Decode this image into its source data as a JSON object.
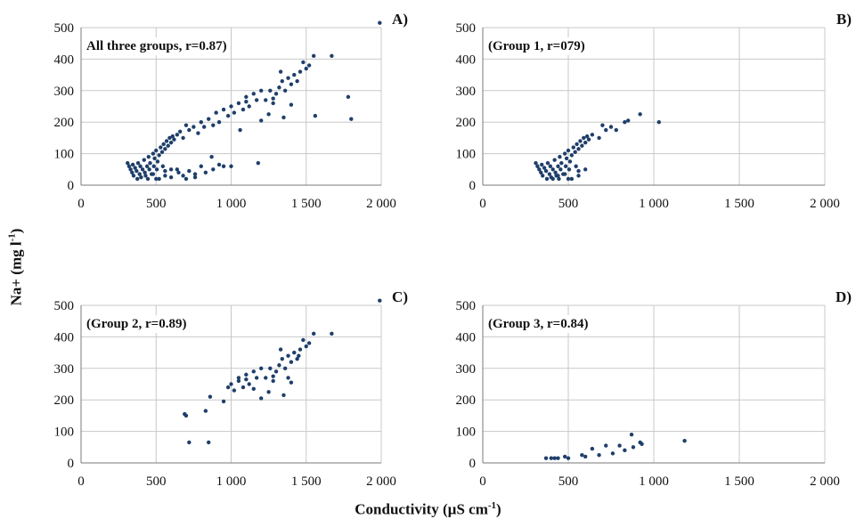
{
  "figure": {
    "ylabel_main": "Na+ (mg l",
    "ylabel_sup": "-1",
    "ylabel_end": ")",
    "xlabel_main": "Conductivity  (µS cm",
    "xlabel_sup": "-1",
    "xlabel_end": ")"
  },
  "colors": {
    "points": "#1f3f6b",
    "grid": "#c8c8c8",
    "axis": "#7a7a7a",
    "text": "#111111"
  },
  "chart_data": [
    {
      "type": "scatter",
      "panel": "A)",
      "annotation": "All three groups,  r=0.87)",
      "xlim": [
        0,
        2000
      ],
      "ylim": [
        0,
        500
      ],
      "xticks": [
        0,
        500,
        1000,
        1500,
        2000
      ],
      "xtick_labels": [
        "0",
        "500",
        "1 000",
        "1 500",
        "2 000"
      ],
      "yticks": [
        0,
        100,
        200,
        300,
        400,
        500
      ],
      "ytick_labels": [
        "0",
        "100",
        "200",
        "300",
        "400",
        "500"
      ],
      "grid": true,
      "points": [
        [
          310,
          70
        ],
        [
          320,
          60
        ],
        [
          330,
          50
        ],
        [
          340,
          40
        ],
        [
          345,
          65
        ],
        [
          350,
          30
        ],
        [
          360,
          55
        ],
        [
          370,
          45
        ],
        [
          375,
          20
        ],
        [
          380,
          70
        ],
        [
          390,
          35
        ],
        [
          395,
          60
        ],
        [
          400,
          25
        ],
        [
          410,
          50
        ],
        [
          420,
          80
        ],
        [
          425,
          40
        ],
        [
          430,
          30
        ],
        [
          440,
          60
        ],
        [
          445,
          20
        ],
        [
          450,
          90
        ],
        [
          455,
          50
        ],
        [
          460,
          70
        ],
        [
          470,
          35
        ],
        [
          480,
          100
        ],
        [
          485,
          60
        ],
        [
          490,
          85
        ],
        [
          500,
          110
        ],
        [
          505,
          50
        ],
        [
          510,
          75
        ],
        [
          520,
          95
        ],
        [
          530,
          120
        ],
        [
          540,
          105
        ],
        [
          545,
          60
        ],
        [
          550,
          130
        ],
        [
          560,
          115
        ],
        [
          570,
          140
        ],
        [
          580,
          125
        ],
        [
          590,
          150
        ],
        [
          600,
          135
        ],
        [
          610,
          155
        ],
        [
          620,
          145
        ],
        [
          640,
          160
        ],
        [
          660,
          170
        ],
        [
          680,
          150
        ],
        [
          700,
          190
        ],
        [
          720,
          175
        ],
        [
          750,
          185
        ],
        [
          780,
          165
        ],
        [
          800,
          200
        ],
        [
          820,
          185
        ],
        [
          850,
          210
        ],
        [
          880,
          190
        ],
        [
          900,
          230
        ],
        [
          920,
          200
        ],
        [
          950,
          240
        ],
        [
          980,
          220
        ],
        [
          1000,
          250
        ],
        [
          1020,
          230
        ],
        [
          1050,
          260
        ],
        [
          1080,
          240
        ],
        [
          1100,
          280
        ],
        [
          1120,
          250
        ],
        [
          1150,
          290
        ],
        [
          1170,
          270
        ],
        [
          1200,
          300
        ],
        [
          1230,
          270
        ],
        [
          1260,
          300
        ],
        [
          1280,
          260
        ],
        [
          1300,
          290
        ],
        [
          1320,
          310
        ],
        [
          1340,
          330
        ],
        [
          1360,
          300
        ],
        [
          1380,
          340
        ],
        [
          1400,
          320
        ],
        [
          1420,
          350
        ],
        [
          1440,
          330
        ],
        [
          1460,
          360
        ],
        [
          1480,
          390
        ],
        [
          1500,
          370
        ],
        [
          1520,
          380
        ],
        [
          1550,
          410
        ],
        [
          1670,
          410
        ],
        [
          1990,
          515
        ],
        [
          1560,
          220
        ],
        [
          1780,
          280
        ],
        [
          1800,
          210
        ],
        [
          1350,
          215
        ],
        [
          1100,
          265
        ],
        [
          1200,
          205
        ],
        [
          1250,
          225
        ],
        [
          1400,
          255
        ],
        [
          1060,
          175
        ],
        [
          1280,
          275
        ],
        [
          1330,
          360
        ],
        [
          520,
          20
        ],
        [
          560,
          30
        ],
        [
          600,
          25
        ],
        [
          640,
          50
        ],
        [
          680,
          30
        ],
        [
          720,
          45
        ],
        [
          760,
          35
        ],
        [
          800,
          60
        ],
        [
          830,
          40
        ],
        [
          870,
          90
        ],
        [
          880,
          50
        ],
        [
          920,
          65
        ],
        [
          950,
          60
        ],
        [
          1000,
          60
        ],
        [
          1180,
          70
        ],
        [
          760,
          25
        ],
        [
          650,
          40
        ],
        [
          480,
          35
        ],
        [
          500,
          20
        ],
        [
          700,
          20
        ],
        [
          600,
          50
        ],
        [
          560,
          45
        ]
      ]
    },
    {
      "type": "scatter",
      "panel": "B)",
      "annotation": "(Group 1, r=079)",
      "xlim": [
        0,
        2000
      ],
      "ylim": [
        0,
        500
      ],
      "xticks": [
        0,
        500,
        1000,
        1500,
        2000
      ],
      "xtick_labels": [
        "0",
        "500",
        "1 000",
        "1 500",
        "2 000"
      ],
      "yticks": [
        0,
        100,
        200,
        300,
        400,
        500
      ],
      "ytick_labels": [
        "0",
        "100",
        "200",
        "300",
        "400",
        "500"
      ],
      "grid": true,
      "points": [
        [
          310,
          70
        ],
        [
          320,
          60
        ],
        [
          330,
          50
        ],
        [
          340,
          40
        ],
        [
          345,
          65
        ],
        [
          350,
          30
        ],
        [
          360,
          55
        ],
        [
          370,
          45
        ],
        [
          375,
          20
        ],
        [
          380,
          70
        ],
        [
          390,
          35
        ],
        [
          395,
          60
        ],
        [
          400,
          25
        ],
        [
          410,
          50
        ],
        [
          420,
          80
        ],
        [
          425,
          40
        ],
        [
          430,
          30
        ],
        [
          440,
          60
        ],
        [
          445,
          20
        ],
        [
          450,
          90
        ],
        [
          455,
          50
        ],
        [
          460,
          70
        ],
        [
          470,
          35
        ],
        [
          480,
          100
        ],
        [
          485,
          60
        ],
        [
          490,
          85
        ],
        [
          500,
          110
        ],
        [
          505,
          50
        ],
        [
          510,
          75
        ],
        [
          520,
          95
        ],
        [
          530,
          120
        ],
        [
          540,
          105
        ],
        [
          545,
          60
        ],
        [
          550,
          130
        ],
        [
          560,
          115
        ],
        [
          570,
          140
        ],
        [
          580,
          125
        ],
        [
          590,
          150
        ],
        [
          600,
          135
        ],
        [
          610,
          155
        ],
        [
          620,
          145
        ],
        [
          640,
          160
        ],
        [
          680,
          150
        ],
        [
          700,
          190
        ],
        [
          720,
          175
        ],
        [
          750,
          185
        ],
        [
          780,
          175
        ],
        [
          830,
          200
        ],
        [
          850,
          205
        ],
        [
          920,
          225
        ],
        [
          1030,
          200
        ],
        [
          560,
          30
        ],
        [
          520,
          20
        ],
        [
          480,
          35
        ],
        [
          600,
          50
        ],
        [
          560,
          45
        ],
        [
          500,
          20
        ],
        [
          440,
          30
        ],
        [
          410,
          20
        ]
      ]
    },
    {
      "type": "scatter",
      "panel": "C)",
      "annotation": "(Group 2, r=0.89)",
      "xlim": [
        0,
        2000
      ],
      "ylim": [
        0,
        500
      ],
      "xticks": [
        0,
        500,
        1000,
        1500,
        2000
      ],
      "xtick_labels": [
        "0",
        "500",
        "1 000",
        "1 500",
        "2 000"
      ],
      "yticks": [
        0,
        100,
        200,
        300,
        400,
        500
      ],
      "ytick_labels": [
        "0",
        "100",
        "200",
        "300",
        "400",
        "500"
      ],
      "grid": true,
      "points": [
        [
          690,
          155
        ],
        [
          700,
          150
        ],
        [
          720,
          65
        ],
        [
          830,
          165
        ],
        [
          850,
          65
        ],
        [
          860,
          210
        ],
        [
          950,
          195
        ],
        [
          980,
          240
        ],
        [
          1000,
          250
        ],
        [
          1020,
          230
        ],
        [
          1050,
          260
        ],
        [
          1080,
          240
        ],
        [
          1100,
          280
        ],
        [
          1120,
          250
        ],
        [
          1150,
          290
        ],
        [
          1170,
          270
        ],
        [
          1200,
          300
        ],
        [
          1230,
          270
        ],
        [
          1260,
          300
        ],
        [
          1280,
          260
        ],
        [
          1300,
          290
        ],
        [
          1320,
          310
        ],
        [
          1340,
          330
        ],
        [
          1360,
          300
        ],
        [
          1380,
          340
        ],
        [
          1400,
          320
        ],
        [
          1420,
          350
        ],
        [
          1440,
          330
        ],
        [
          1460,
          360
        ],
        [
          1480,
          390
        ],
        [
          1500,
          370
        ],
        [
          1520,
          380
        ],
        [
          1550,
          410
        ],
        [
          1670,
          410
        ],
        [
          1990,
          515
        ],
        [
          1350,
          215
        ],
        [
          1200,
          205
        ],
        [
          1250,
          225
        ],
        [
          1400,
          255
        ],
        [
          1330,
          360
        ],
        [
          1100,
          265
        ],
        [
          1280,
          275
        ],
        [
          1450,
          340
        ],
        [
          1380,
          270
        ],
        [
          1050,
          270
        ],
        [
          1150,
          235
        ]
      ]
    },
    {
      "type": "scatter",
      "panel": "D)",
      "annotation": "(Group 3, r=0.84)",
      "xlim": [
        0,
        2000
      ],
      "ylim": [
        0,
        500
      ],
      "xticks": [
        0,
        500,
        1000,
        1500,
        2000
      ],
      "xtick_labels": [
        "0",
        "500",
        "1 000",
        "1 500",
        "2 000"
      ],
      "yticks": [
        0,
        100,
        200,
        300,
        400,
        500
      ],
      "ytick_labels": [
        "0",
        "100",
        "200",
        "300",
        "400",
        "500"
      ],
      "grid": true,
      "points": [
        [
          370,
          15
        ],
        [
          400,
          15
        ],
        [
          420,
          15
        ],
        [
          440,
          15
        ],
        [
          480,
          20
        ],
        [
          500,
          15
        ],
        [
          580,
          25
        ],
        [
          600,
          20
        ],
        [
          640,
          45
        ],
        [
          680,
          25
        ],
        [
          720,
          55
        ],
        [
          760,
          30
        ],
        [
          800,
          55
        ],
        [
          830,
          40
        ],
        [
          870,
          90
        ],
        [
          880,
          50
        ],
        [
          920,
          65
        ],
        [
          930,
          60
        ],
        [
          1180,
          70
        ]
      ]
    }
  ]
}
